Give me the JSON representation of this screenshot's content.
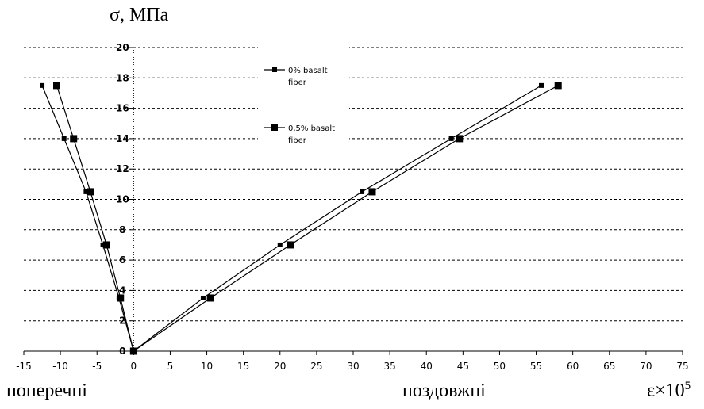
{
  "chart_data": {
    "type": "line",
    "xlim": [
      -15,
      75
    ],
    "ylim": [
      0,
      20
    ],
    "x_ticks": [
      "-15",
      "-10",
      "-5",
      "0",
      "5",
      "10",
      "15",
      "20",
      "25",
      "30",
      "35",
      "40",
      "45",
      "50",
      "55",
      "60",
      "65",
      "70",
      "75"
    ],
    "y_ticks": [
      "0",
      "2",
      "4",
      "6",
      "8",
      "10",
      "12",
      "14",
      "16",
      "18",
      "20"
    ],
    "grid_y": true,
    "grid_style": "dashed",
    "ylabel": "σ, МПа",
    "xlabel_left": "поперечні",
    "xlabel_mid": "поздовжні",
    "xlabel_right": "ε×10",
    "xlabel_right_exp": "5",
    "legend_position": "top-center",
    "series": [
      {
        "name": "0% basalt fiber",
        "legend_lines": [
          "0% basalt",
          "fiber"
        ],
        "marker_size": "small",
        "points": [
          [
            -12.5,
            17.5
          ],
          [
            -9.5,
            14.0
          ],
          [
            -6.5,
            10.5
          ],
          [
            -4.2,
            7.0
          ],
          [
            -2.0,
            3.5
          ],
          [
            0,
            0
          ],
          [
            9.5,
            3.5
          ],
          [
            20.0,
            7.0
          ],
          [
            31.2,
            10.5
          ],
          [
            43.4,
            14.0
          ],
          [
            55.7,
            17.5
          ]
        ]
      },
      {
        "name": "0,5% basalt fiber",
        "legend_lines": [
          "0,5% basalt",
          "fiber"
        ],
        "marker_size": "large",
        "points": [
          [
            -10.5,
            17.5
          ],
          [
            -8.2,
            14.0
          ],
          [
            -5.9,
            10.5
          ],
          [
            -3.7,
            7.0
          ],
          [
            -1.8,
            3.5
          ],
          [
            0,
            0
          ],
          [
            10.5,
            3.5
          ],
          [
            21.4,
            7.0
          ],
          [
            32.6,
            10.5
          ],
          [
            44.5,
            14.0
          ],
          [
            58.0,
            17.5
          ]
        ]
      }
    ]
  }
}
